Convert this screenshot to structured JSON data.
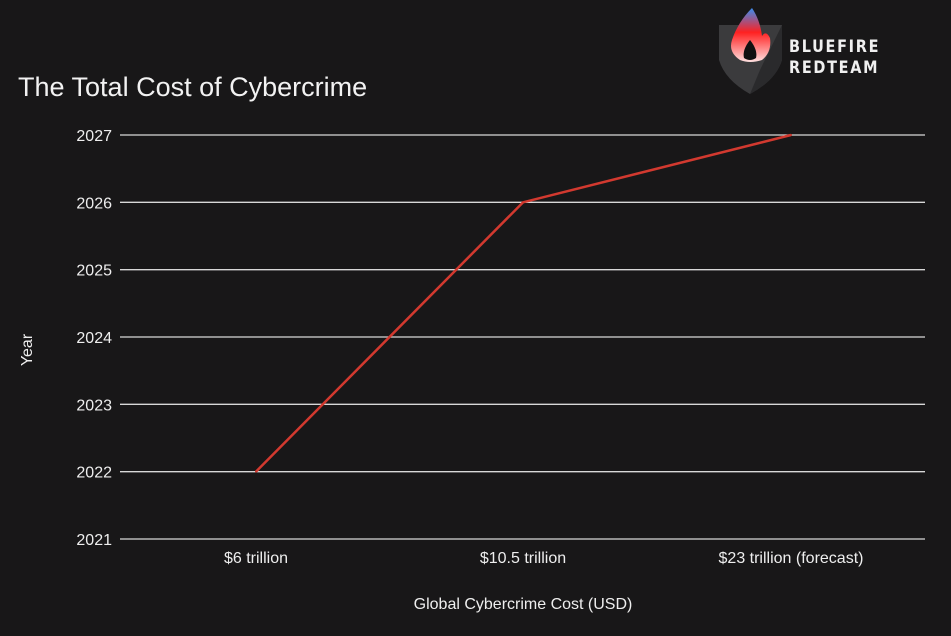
{
  "logo": {
    "line1": "BLUEFIRE",
    "line2": "REDTEAM"
  },
  "chart_data": {
    "type": "line",
    "title": "The Total Cost of Cybercrime",
    "xlabel": "Global Cybercrime Cost (USD)",
    "ylabel": "Year",
    "categories": [
      "$6 trillion",
      "$10.5 trillion",
      "$23 trillion (forecast)"
    ],
    "series": [
      {
        "name": "Year",
        "values": [
          2022,
          2026,
          2027
        ],
        "color": "#d2392f"
      }
    ],
    "ylim": [
      2021,
      2027
    ],
    "yticks": [
      2021,
      2022,
      2023,
      2024,
      2025,
      2026,
      2027
    ],
    "grid": true,
    "legend": "none"
  }
}
